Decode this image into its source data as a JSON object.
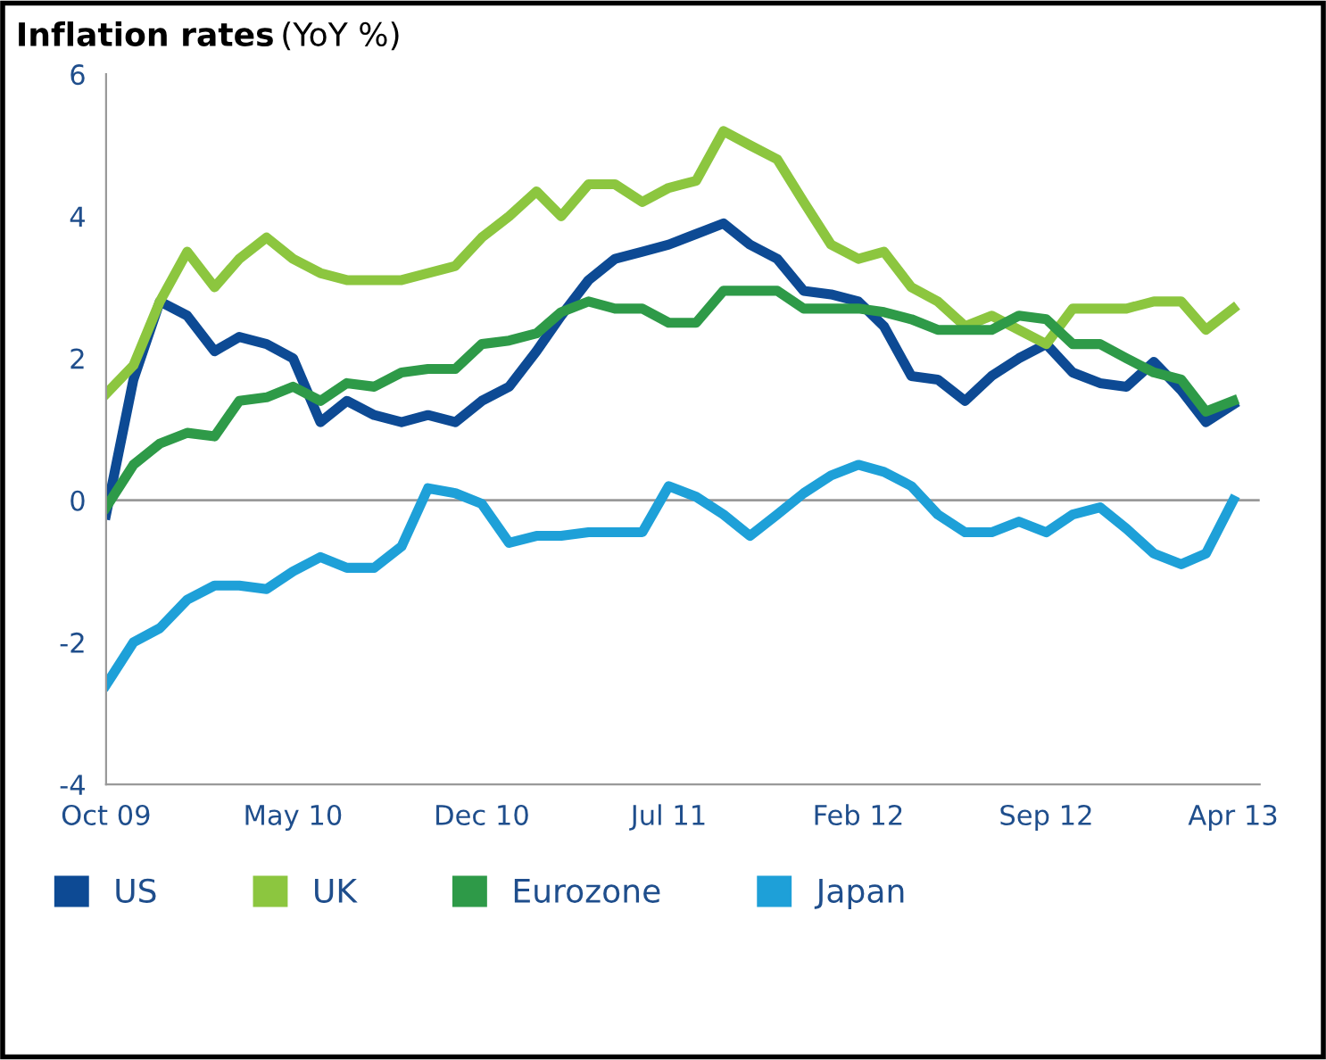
{
  "chart_data": {
    "type": "line",
    "title": "Inflation rates",
    "subtitle": "(YoY %)",
    "x": [
      "2009-10",
      "2009-11",
      "2009-12",
      "2010-01",
      "2010-02",
      "2010-03",
      "2010-04",
      "2010-05",
      "2010-06",
      "2010-07",
      "2010-08",
      "2010-09",
      "2010-10",
      "2010-11",
      "2010-12",
      "2011-01",
      "2011-02",
      "2011-03",
      "2011-04",
      "2011-05",
      "2011-06",
      "2011-07",
      "2011-08",
      "2011-09",
      "2011-10",
      "2011-11",
      "2011-12",
      "2012-01",
      "2012-02",
      "2012-03",
      "2012-04",
      "2012-05",
      "2012-06",
      "2012-07",
      "2012-08",
      "2012-09",
      "2012-10",
      "2012-11",
      "2012-12",
      "2013-01",
      "2013-02",
      "2013-03",
      "2013-04"
    ],
    "series": [
      {
        "name": "US",
        "color": "#0d4a94",
        "values": [
          -0.2,
          1.7,
          2.8,
          2.6,
          2.1,
          2.3,
          2.2,
          2.0,
          1.1,
          1.4,
          1.2,
          1.1,
          1.2,
          1.1,
          1.4,
          1.6,
          2.1,
          2.6,
          3.1,
          3.4,
          3.5,
          3.6,
          3.75,
          3.9,
          3.6,
          3.4,
          2.95,
          2.9,
          2.8,
          2.45,
          1.75,
          1.7,
          1.4,
          1.75,
          2.0,
          2.2,
          1.8,
          1.65,
          1.6,
          1.95,
          1.55,
          1.1,
          1.35
        ]
      },
      {
        "name": "UK",
        "color": "#8cc63f",
        "values": [
          1.5,
          1.9,
          2.8,
          3.5,
          3.0,
          3.4,
          3.7,
          3.4,
          3.2,
          3.1,
          3.1,
          3.1,
          3.2,
          3.3,
          3.7,
          4.0,
          4.35,
          4.0,
          4.45,
          4.45,
          4.2,
          4.4,
          4.5,
          5.2,
          5.0,
          4.8,
          4.2,
          3.6,
          3.4,
          3.5,
          3.0,
          2.8,
          2.45,
          2.6,
          2.4,
          2.2,
          2.7,
          2.7,
          2.7,
          2.8,
          2.8,
          2.4,
          2.7
        ]
      },
      {
        "name": "Eurozone",
        "color": "#2e9a48",
        "values": [
          -0.1,
          0.5,
          0.8,
          0.95,
          0.9,
          1.4,
          1.45,
          1.6,
          1.4,
          1.65,
          1.6,
          1.8,
          1.85,
          1.85,
          2.2,
          2.25,
          2.35,
          2.65,
          2.8,
          2.7,
          2.7,
          2.5,
          2.5,
          2.95,
          2.95,
          2.95,
          2.7,
          2.7,
          2.7,
          2.65,
          2.55,
          2.4,
          2.4,
          2.4,
          2.6,
          2.55,
          2.2,
          2.2,
          2.0,
          1.8,
          1.7,
          1.25,
          1.4
        ]
      },
      {
        "name": "Japan",
        "color": "#1ea0d8",
        "values": [
          -2.6,
          -2.0,
          -1.8,
          -1.4,
          -1.2,
          -1.2,
          -1.25,
          -1.0,
          -0.8,
          -0.95,
          -0.95,
          -0.65,
          0.17,
          0.1,
          -0.05,
          -0.6,
          -0.5,
          -0.5,
          -0.45,
          -0.45,
          -0.45,
          0.2,
          0.05,
          -0.2,
          -0.5,
          -0.2,
          0.1,
          0.35,
          0.5,
          0.4,
          0.2,
          -0.2,
          -0.45,
          -0.45,
          -0.3,
          -0.45,
          -0.2,
          -0.1,
          -0.4,
          -0.75,
          -0.9,
          -0.75,
          0.0
        ]
      }
    ],
    "xlim": [
      "2009-10",
      "2013-05"
    ],
    "xticks": [
      {
        "value": "2009-10",
        "label": "Oct 09"
      },
      {
        "value": "2010-05",
        "label": "May 10"
      },
      {
        "value": "2010-12",
        "label": "Dec 10"
      },
      {
        "value": "2011-07",
        "label": "Jul 11"
      },
      {
        "value": "2012-02",
        "label": "Feb 12"
      },
      {
        "value": "2012-09",
        "label": "Sep 12"
      },
      {
        "value": "2013-04",
        "label": "Apr 13"
      }
    ],
    "ylim": [
      -4,
      6
    ],
    "yticks": [
      -4,
      -2,
      0,
      2,
      4,
      6
    ],
    "ref_lines": [
      {
        "axis": "y",
        "value": 0,
        "color": "#999999"
      }
    ],
    "grid": false,
    "legend": "bottom",
    "marker": "none",
    "line_style": "solid"
  }
}
